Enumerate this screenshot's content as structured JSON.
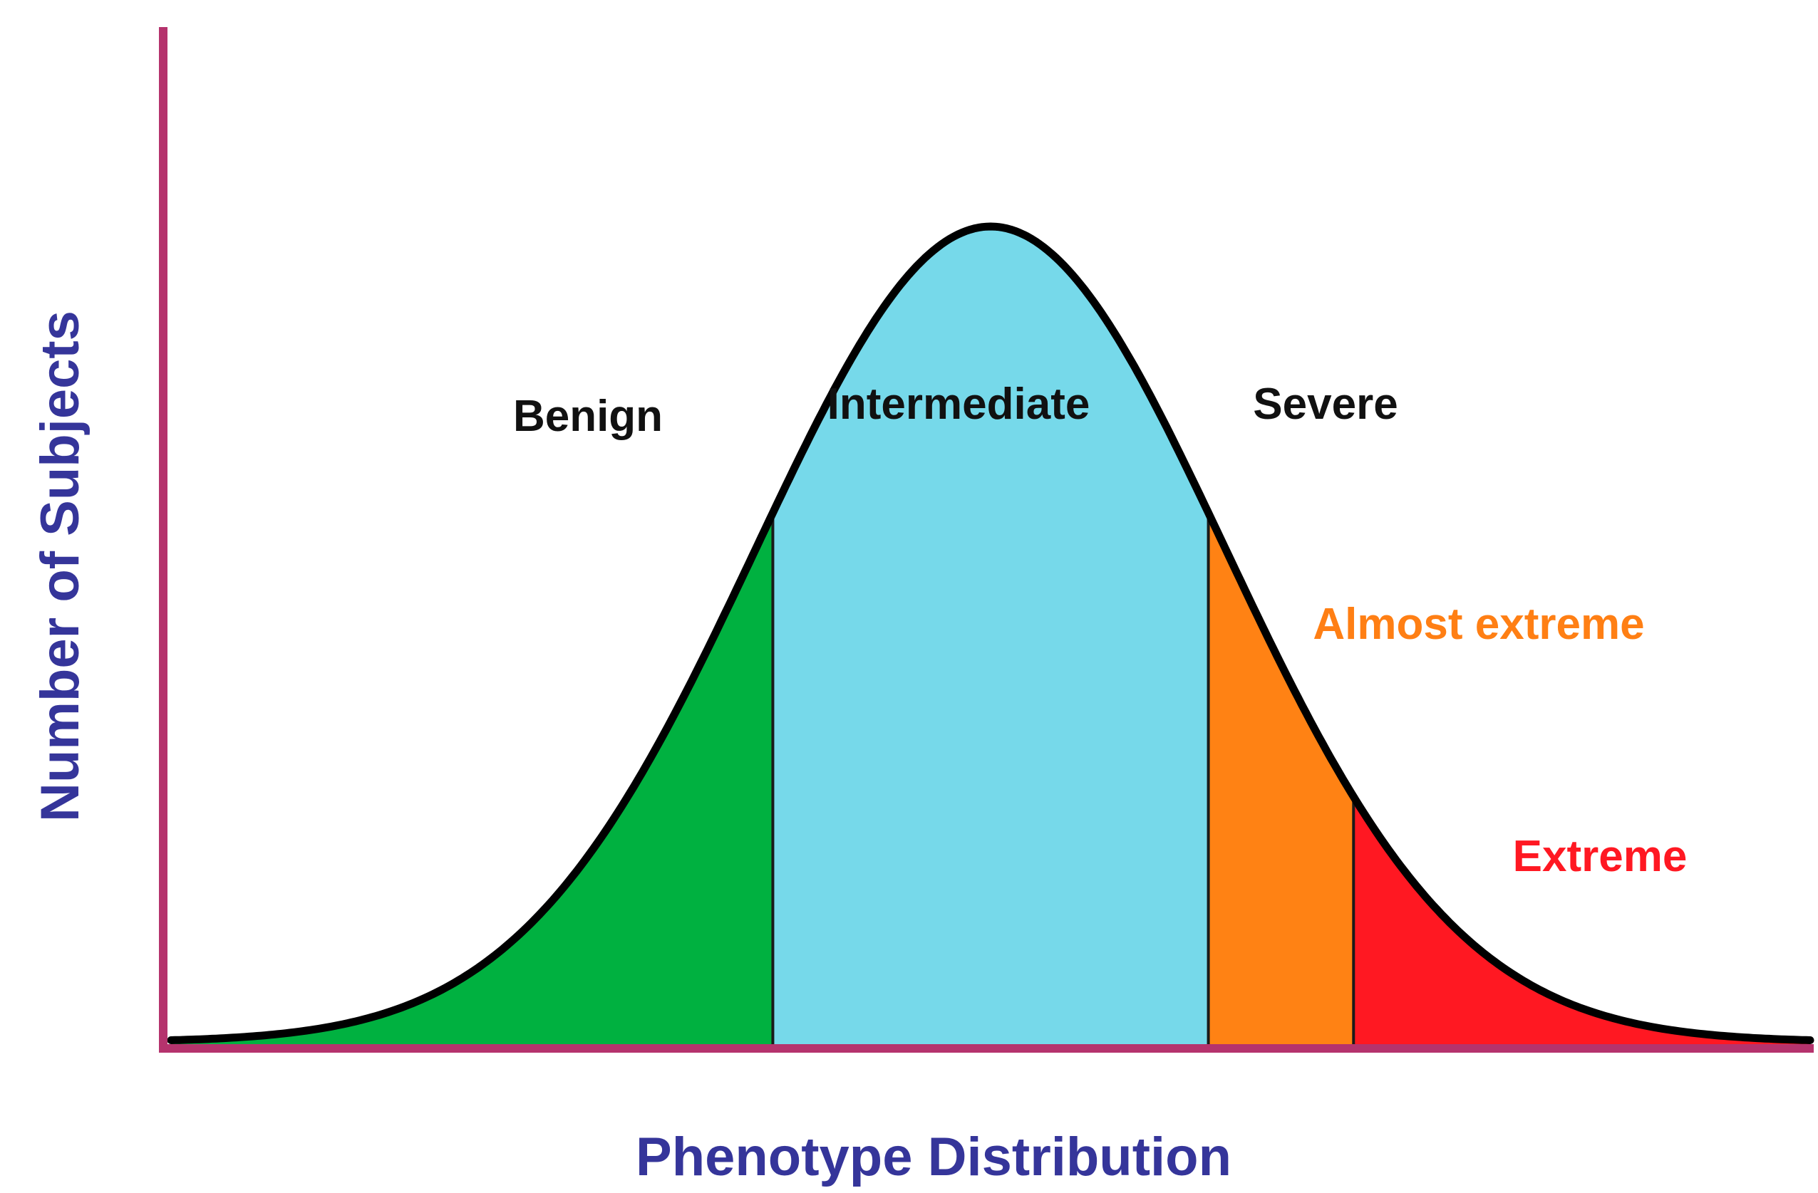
{
  "chart_data": {
    "type": "area",
    "title": "",
    "xlabel": "Phenotype Distribution",
    "ylabel": "Number of Subjects",
    "grid": false,
    "distribution": {
      "shape": "normal",
      "mean": 0,
      "sd": 1,
      "xlim": [
        -3.5,
        3.5
      ]
    },
    "regions": [
      {
        "name": "Benign",
        "x_from": -3.5,
        "x_to": -0.93,
        "fill": "#00b140",
        "label_color": "#111111"
      },
      {
        "name": "Intermediate",
        "x_from": -0.93,
        "x_to": 0.93,
        "fill": "#76d9ea",
        "label_color": "#111111"
      },
      {
        "name": "Severe",
        "x_from": 0.93,
        "x_to": 3.5,
        "fill": "",
        "label_color": "#111111"
      },
      {
        "name": "Almost extreme",
        "x_from": 0.93,
        "x_to": 1.55,
        "fill": "#ff8214",
        "label_color": "#ff7f14"
      },
      {
        "name": "Extreme",
        "x_from": 1.55,
        "x_to": 3.5,
        "fill": "#ff1822",
        "label_color": "#ff1822"
      }
    ],
    "colors": {
      "axis": "#b5336d",
      "curve": "#000000",
      "axis_title": "#35359a"
    }
  }
}
